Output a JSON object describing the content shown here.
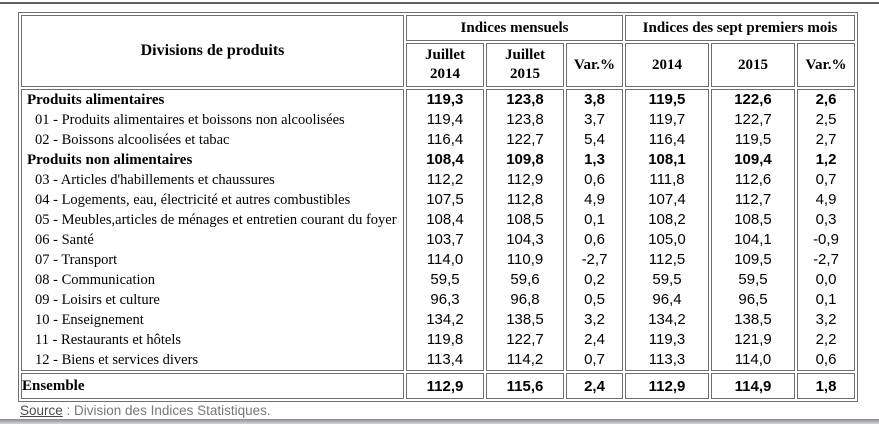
{
  "table": {
    "col_header": "Divisions de produits",
    "groups": [
      {
        "label": "Indices mensuels"
      },
      {
        "label": "Indices des sept premiers mois"
      }
    ],
    "sub_headers": [
      "Juillet\n2014",
      "Juillet\n2015",
      "Var.%",
      "2014",
      "2015",
      "Var.%"
    ],
    "rows": [
      {
        "label": "Produits alimentaires",
        "bold": true,
        "values": [
          "119,3",
          "123,8",
          "3,8",
          "119,5",
          "122,6",
          "2,6"
        ]
      },
      {
        "label": "01 - Produits alimentaires et boissons non alcoolisées",
        "bold": false,
        "values": [
          "119,4",
          "123,8",
          "3,7",
          "119,7",
          "122,7",
          "2,5"
        ]
      },
      {
        "label": "02 - Boissons alcoolisées et tabac",
        "bold": false,
        "values": [
          "116,4",
          "122,7",
          "5,4",
          "116,4",
          "119,5",
          "2,7"
        ]
      },
      {
        "label": "Produits non alimentaires",
        "bold": true,
        "values": [
          "108,4",
          "109,8",
          "1,3",
          "108,1",
          "109,4",
          "1,2"
        ]
      },
      {
        "label": "03 - Articles d'habillements et chaussures",
        "bold": false,
        "values": [
          "112,2",
          "112,9",
          "0,6",
          "111,8",
          "112,6",
          "0,7"
        ]
      },
      {
        "label": "04 - Logements, eau, électricité et autres combustibles",
        "bold": false,
        "values": [
          "107,5",
          "112,8",
          "4,9",
          "107,4",
          "112,7",
          "4,9"
        ]
      },
      {
        "label": "05 - Meubles,articles de ménages et entretien courant du foyer",
        "bold": false,
        "values": [
          "108,4",
          "108,5",
          "0,1",
          "108,2",
          "108,5",
          "0,3"
        ]
      },
      {
        "label": "06 - Santé",
        "bold": false,
        "values": [
          "103,7",
          "104,3",
          "0,6",
          "105,0",
          "104,1",
          "-0,9"
        ]
      },
      {
        "label": "07 - Transport",
        "bold": false,
        "values": [
          "114,0",
          "110,9",
          "-2,7",
          "112,5",
          "109,5",
          "-2,7"
        ]
      },
      {
        "label": "08 - Communication",
        "bold": false,
        "values": [
          "59,5",
          "59,6",
          "0,2",
          "59,5",
          "59,5",
          "0,0"
        ]
      },
      {
        "label": "09 - Loisirs et culture",
        "bold": false,
        "values": [
          "96,3",
          "96,8",
          "0,5",
          "96,4",
          "96,5",
          "0,1"
        ]
      },
      {
        "label": "10 - Enseignement",
        "bold": false,
        "values": [
          "134,2",
          "138,5",
          "3,2",
          "134,2",
          "138,5",
          "3,2"
        ]
      },
      {
        "label": "11 - Restaurants et hôtels",
        "bold": false,
        "values": [
          "119,8",
          "122,7",
          "2,4",
          "119,3",
          "121,9",
          "2,2"
        ]
      },
      {
        "label": "12 - Biens et services divers",
        "bold": false,
        "values": [
          "113,4",
          "114,2",
          "0,7",
          "113,3",
          "114,0",
          "0,6"
        ]
      }
    ],
    "total_row": {
      "label": "Ensemble",
      "values": [
        "112,9",
        "115,6",
        "2,4",
        "112,9",
        "114,9",
        "1,8"
      ]
    }
  },
  "footer": {
    "source_label": "Source",
    "source_text": " : Division des Indices Statistiques."
  },
  "colors": {
    "border": "#6f6f6f",
    "footer_label": "#4a4a4a",
    "footer_text": "#777777"
  }
}
